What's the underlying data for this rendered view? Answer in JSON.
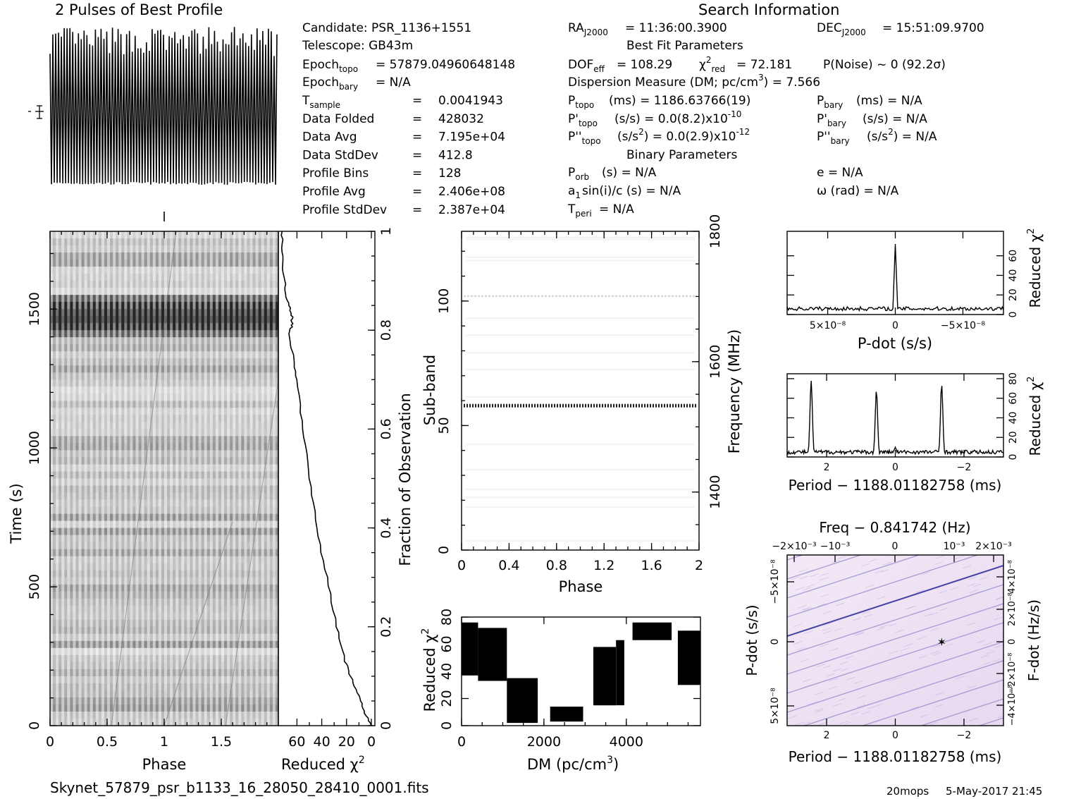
{
  "header": {
    "profile_title": "2 Pulses of Best Profile",
    "search_title": "Search Information",
    "fit_title": "Best Fit Parameters",
    "binary_title": "Binary Parameters",
    "filename": "Skynet_57879_psr_b1133_16_28050_28410_0001.fits",
    "footer_user": "20mops",
    "footer_date": "5-May-2017 21:45"
  },
  "info": {
    "candidate": "Candidate:  PSR_1136+1551",
    "telescope": "Telescope:  GB43m",
    "epoch_topo": "= 57879.04960648148",
    "epoch_bary": "= N/A",
    "rows": [
      {
        "label": "T",
        "sub": "sample",
        "value": "0.0041943"
      },
      {
        "label": "Data Folded",
        "sub": "",
        "value": "428032"
      },
      {
        "label": "Data Avg",
        "sub": "",
        "value": "7.195e+04"
      },
      {
        "label": "Data StdDev",
        "sub": "",
        "value": "412.8"
      },
      {
        "label": "Profile Bins",
        "sub": "",
        "value": "128"
      },
      {
        "label": "Profile Avg",
        "sub": "",
        "value": "2.406e+08"
      },
      {
        "label": "Profile StdDev",
        "sub": "",
        "value": "2.387e+04"
      }
    ],
    "ra": "= 11:36:00.3900",
    "dec": "= 15:51:09.9700",
    "dof": "= 108.29",
    "chi2red": "= 72.181",
    "pnoise": "P(Noise) ~ 0    (92.2σ)",
    "dm_line": "Dispersion Measure (DM; pc/cm",
    "dm_value": ") = 7.566",
    "p_topo": "(ms) =  1186.63766(19)",
    "p_bary": "(ms) = N/A",
    "pd_topo": "(s/s) = 0.0(8.2)x10",
    "pd_topo_exp": "-10",
    "pd_bary": "(s/s) = N/A",
    "pdd_topo": "(s/s",
    "pdd_topo_2": ") = 0.0(2.9)x10",
    "pdd_topo_exp": "-12",
    "pdd_bary": "(s/s",
    "pdd_bary_2": ") = N/A",
    "p_orb": "(s) = N/A",
    "a1": "sin(i)/c (s) = N/A",
    "t_peri": "= N/A",
    "e": "e = N/A",
    "omega": "ω (rad) = N/A"
  },
  "chart_data": [
    {
      "type": "line",
      "name": "pulse-profile",
      "title": "2 Pulses of Best Profile",
      "x_range": [
        0,
        2
      ],
      "pulses": 2,
      "bins_per_pulse": 128,
      "peak_bins_per_pulse": 40,
      "note_marker": "error bar at left edge"
    },
    {
      "type": "heatmap",
      "name": "time-vs-phase",
      "xlabel": "Phase",
      "ylabel": "Time (s)",
      "xlim": [
        0,
        2
      ],
      "ylim": [
        0,
        1780
      ],
      "x_ticks": [
        "0",
        "0.5",
        "1",
        "1.5"
      ],
      "y_ticks": [
        "0",
        "500",
        "1000",
        "1500"
      ],
      "dark_bands_time_s": [
        1460,
        1480,
        1430,
        1520
      ],
      "right_axis_label": "Fraction of Observation",
      "right_ticks": [
        "0",
        "0.2",
        "0.4",
        "0.6",
        "0.8",
        "1"
      ]
    },
    {
      "type": "line",
      "name": "reduced-chi2-vs-time",
      "xlabel": "Reduced χ²",
      "x_ticks": [
        "60",
        "40",
        "20",
        "0"
      ],
      "xlim": [
        0,
        75
      ],
      "fraction": [
        0.0,
        0.03,
        0.06,
        0.1,
        0.13,
        0.2,
        0.3,
        0.4,
        0.5,
        0.6,
        0.7,
        0.75,
        0.79,
        0.81,
        0.83,
        0.86,
        0.9,
        0.95,
        1.0
      ],
      "chi2": [
        0,
        6,
        10,
        17,
        21,
        28,
        36,
        44,
        50,
        55,
        60,
        63,
        67,
        64,
        64,
        68,
        70,
        72,
        72
      ]
    },
    {
      "type": "heatmap",
      "name": "subband-vs-phase",
      "xlabel": "Phase",
      "ylabel": "Sub-band",
      "right_axis_label": "Frequency (MHz)",
      "x_ticks": [
        "0",
        "0.4",
        "0.8",
        "1.2",
        "1.6",
        "2"
      ],
      "y_ticks": [
        "0",
        "50",
        "100"
      ],
      "freq_ticks": [
        "1400",
        "1600",
        "1800"
      ],
      "xlim": [
        0,
        2
      ],
      "ylim": [
        0,
        128
      ],
      "bright_subbands": [
        58,
        102
      ]
    },
    {
      "type": "line",
      "name": "reduced-chi2-vs-dm",
      "xlabel": "DM (pc/cm³)",
      "ylabel": "Reduced χ²",
      "x_ticks": [
        "0",
        "2000",
        "4000"
      ],
      "y_ticks": [
        "0",
        "20",
        "40",
        "60",
        "80"
      ],
      "xlim": [
        0,
        5800
      ],
      "ylim": [
        0,
        80
      ],
      "segments": [
        {
          "x0": 0,
          "x1": 400,
          "lo": 37,
          "hi": 76
        },
        {
          "x0": 400,
          "x1": 1100,
          "lo": 33,
          "hi": 72
        },
        {
          "x0": 1100,
          "x1": 1850,
          "lo": 2,
          "hi": 35
        },
        {
          "x0": 2150,
          "x1": 2950,
          "lo": 3,
          "hi": 14
        },
        {
          "x0": 3200,
          "x1": 3750,
          "lo": 15,
          "hi": 58
        },
        {
          "x0": 3750,
          "x1": 3950,
          "lo": 15,
          "hi": 63
        },
        {
          "x0": 4150,
          "x1": 5100,
          "lo": 63,
          "hi": 76
        },
        {
          "x0": 5250,
          "x1": 5800,
          "lo": 30,
          "hi": 70
        }
      ]
    },
    {
      "type": "line",
      "name": "reduced-chi2-vs-pdot",
      "xlabel": "P-dot (s/s)",
      "ylabel": "Reduced χ²",
      "x_ticks": [
        "5×10⁻⁸",
        "0",
        "−5×10⁻⁸"
      ],
      "y_ticks": [
        "0",
        "20",
        "40",
        "60"
      ],
      "xlim": [
        8e-08,
        -8e-08
      ],
      "ylim": [
        0,
        85
      ],
      "peak_x": 0,
      "peak_y": 72,
      "baseline": 4
    },
    {
      "type": "line",
      "name": "reduced-chi2-vs-period",
      "xlabel": "Period − 1188.01182758 (ms)",
      "ylabel": "Reduced χ²",
      "x_ticks": [
        "2",
        "0",
        "−2"
      ],
      "y_ticks": [
        "0",
        "20",
        "40",
        "60",
        "80"
      ],
      "xlim": [
        3.15,
        -3.15
      ],
      "ylim": [
        0,
        85
      ],
      "peaks": [
        {
          "x": 2.45,
          "y": 78
        },
        {
          "x": 0.55,
          "y": 68
        },
        {
          "x": -1.35,
          "y": 74
        },
        {
          "x": 0.0,
          "y": 10
        }
      ],
      "baseline": 3
    },
    {
      "type": "heatmap",
      "name": "period-pdot-plane",
      "xlabel": "Period − 1188.01182758 (ms)",
      "ylabel": "P-dot (s/s)",
      "top_label": "Freq − 0.841742 (Hz)",
      "right_label": "F-dot (Hz/s)",
      "x_ticks": [
        "2",
        "0",
        "−2"
      ],
      "top_ticks": [
        "−2×10⁻³",
        "−10⁻³",
        "0",
        "10⁻³",
        "2×10⁻³"
      ],
      "y_ticks": [
        "5×10⁻⁸",
        "0",
        "−5×10⁻⁸"
      ],
      "right_ticks": [
        "−4×10⁻⁸",
        "−2×10⁻⁸",
        "0",
        "2×10⁻⁸",
        "4×10⁻⁸"
      ],
      "xlim": [
        3.15,
        -3.15
      ],
      "ylim": [
        8e-08,
        -8e-08
      ],
      "best_marker": {
        "x": -1.35,
        "y": 0.0
      }
    }
  ]
}
